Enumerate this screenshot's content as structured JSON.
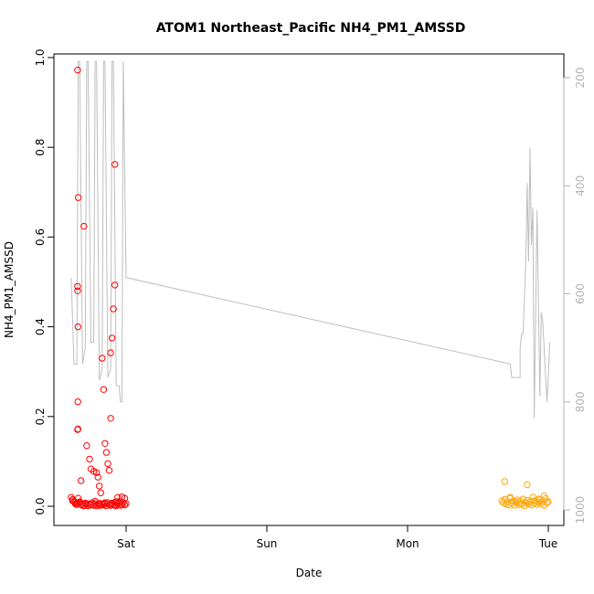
{
  "chart_data": {
    "type": "scatter",
    "title": "ATOM1 Northeast_Pacific NH4_PM1_AMSSD",
    "xlabel": "Date",
    "ylabel": "NH4_PM1_AMSSD",
    "x_ticks": [
      {
        "x": 1.0,
        "label": "Sat"
      },
      {
        "x": 2.0,
        "label": "Sun"
      },
      {
        "x": 3.0,
        "label": "Mon"
      },
      {
        "x": 4.0,
        "label": "Tue"
      }
    ],
    "xlim": [
      0.57,
      4.08
    ],
    "ylim": [
      -0.04,
      1.0
    ],
    "y_ticks": [
      "0.0",
      "0.2",
      "0.4",
      "0.6",
      "0.8",
      "1.0"
    ],
    "y2_lim": [
      1010,
      170
    ],
    "y2_ticks": [
      "200",
      "400",
      "600",
      "800",
      "1000"
    ],
    "grid": false,
    "colors": {
      "series_red": "#ff0000",
      "series_orange": "#ffa500",
      "pressure_line": "#bebebe",
      "axis": "#000000",
      "right_axis": "#b3b3b3"
    },
    "series": [
      {
        "color": "#ff0000",
        "marker": "open-circle",
        "x": [
          0.61,
          0.62,
          0.63,
          0.64,
          0.66,
          0.67,
          0.68,
          0.69,
          0.7,
          0.71,
          0.72,
          0.73,
          0.74,
          0.75,
          0.76,
          0.77,
          0.78,
          0.79,
          0.8,
          0.81,
          0.82,
          0.83,
          0.84,
          0.85,
          0.86,
          0.87,
          0.88,
          0.89,
          0.9,
          0.91,
          0.92,
          0.93,
          0.94,
          0.95,
          0.96,
          0.97,
          0.98,
          0.99,
          1.0,
          0.62,
          0.64,
          0.65,
          0.67,
          0.7,
          0.72,
          0.75,
          0.78,
          0.81,
          0.83,
          0.85,
          0.88,
          0.9,
          0.92,
          0.94,
          0.97,
          0.99,
          0.655,
          0.66,
          0.655,
          0.656,
          0.658,
          0.657,
          0.658,
          0.655,
          0.657,
          0.7,
          0.68,
          0.72,
          0.74,
          0.75,
          0.77,
          0.79,
          0.8,
          0.81,
          0.82,
          0.83,
          0.84,
          0.85,
          0.86,
          0.87,
          0.88,
          0.89,
          0.89,
          0.9,
          0.91,
          0.92,
          0.92,
          0.93,
          0.94
        ],
        "y": [
          0.02,
          0.015,
          0.01,
          0.005,
          0.018,
          0.008,
          0.003,
          0.006,
          0.002,
          0.007,
          0.004,
          0.001,
          0.005,
          0.003,
          0.008,
          0.002,
          0.006,
          0.001,
          0.004,
          0.007,
          0.002,
          0.005,
          0.003,
          0.006,
          0.001,
          0.008,
          0.004,
          0.002,
          0.006,
          0.003,
          0.009,
          0.001,
          0.005,
          0.007,
          0.002,
          0.004,
          0.008,
          0.003,
          0.006,
          0.012,
          0.009,
          0.004,
          0.01,
          0.001,
          0.006,
          0.003,
          0.011,
          0.002,
          0.005,
          0.008,
          0.004,
          0.007,
          0.002,
          0.01,
          0.021,
          0.018,
          0.972,
          0.688,
          0.49,
          0.48,
          0.4,
          0.233,
          0.172,
          0.171,
          0.005,
          0.624,
          0.057,
          0.135,
          0.105,
          0.083,
          0.078,
          0.075,
          0.065,
          0.045,
          0.03,
          0.33,
          0.26,
          0.14,
          0.12,
          0.095,
          0.08,
          0.196,
          0.342,
          0.375,
          0.44,
          0.493,
          0.762,
          0.01,
          0.02
        ]
      },
      {
        "color": "#ffa500",
        "marker": "open-circle",
        "x": [
          3.67,
          3.68,
          3.69,
          3.7,
          3.71,
          3.72,
          3.73,
          3.74,
          3.75,
          3.76,
          3.77,
          3.78,
          3.79,
          3.8,
          3.81,
          3.82,
          3.83,
          3.84,
          3.85,
          3.86,
          3.87,
          3.88,
          3.89,
          3.9,
          3.91,
          3.92,
          3.93,
          3.94,
          3.95,
          3.96,
          3.97,
          3.98,
          3.99,
          4.0,
          3.69,
          3.73,
          3.77,
          3.81,
          3.85,
          3.89,
          3.93,
          3.97
        ],
        "y": [
          0.012,
          0.008,
          0.015,
          0.005,
          0.01,
          0.003,
          0.018,
          0.007,
          0.012,
          0.002,
          0.009,
          0.014,
          0.004,
          0.011,
          0.006,
          0.016,
          0.001,
          0.008,
          0.013,
          0.005,
          0.01,
          0.003,
          0.02,
          0.007,
          0.012,
          0.004,
          0.009,
          0.015,
          0.006,
          0.011,
          0.002,
          0.017,
          0.008,
          0.01,
          0.055,
          0.02,
          0.01,
          0.005,
          0.048,
          0.012,
          0.016,
          0.023
        ]
      }
    ],
    "pressure_line": {
      "color": "#bebebe",
      "axis": "right",
      "x": [
        0.61,
        0.63,
        0.65,
        0.66,
        0.67,
        0.69,
        0.71,
        0.72,
        0.73,
        0.75,
        0.77,
        0.78,
        0.79,
        0.81,
        0.83,
        0.84,
        0.85,
        0.87,
        0.89,
        0.9,
        0.91,
        0.93,
        0.95,
        0.96,
        0.97,
        0.98,
        1.0,
        3.7,
        3.73,
        3.74,
        3.8,
        3.8,
        3.81,
        3.82,
        3.84,
        3.85,
        3.86,
        3.87,
        3.88,
        3.89,
        3.9,
        3.92,
        3.94,
        3.95,
        3.96,
        3.97,
        3.99,
        4.0,
        4.01
      ],
      "y": [
        570,
        730,
        730,
        170,
        170,
        730,
        700,
        170,
        170,
        690,
        690,
        170,
        170,
        760,
        740,
        170,
        170,
        755,
        740,
        170,
        170,
        770,
        770,
        800,
        800,
        170,
        570,
        728,
        730,
        755,
        755,
        700,
        675,
        675,
        540,
        395,
        540,
        330,
        510,
        440,
        830,
        445,
        790,
        635,
        650,
        700,
        800,
        755,
        690
      ]
    }
  }
}
